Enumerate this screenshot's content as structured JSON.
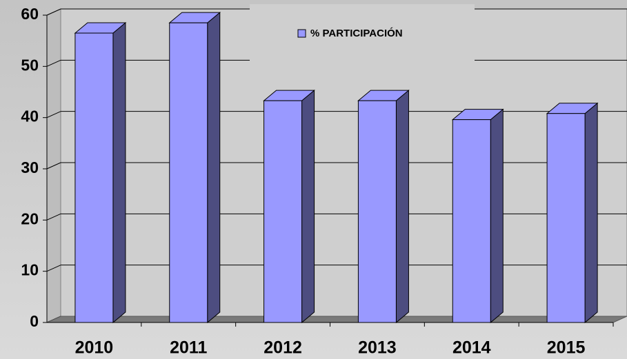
{
  "chart_data": {
    "type": "bar3d",
    "categories": [
      "2010",
      "2011",
      "2012",
      "2013",
      "2014",
      "2015"
    ],
    "series": [
      {
        "name": "% PARTICIPACIÓN",
        "color": "#9999ff",
        "values": [
          56.5,
          58.5,
          43.3,
          43.3,
          39.6,
          40.8
        ]
      }
    ],
    "ylim": [
      0,
      60
    ],
    "yticks": [
      0,
      10,
      20,
      30,
      40,
      50,
      60
    ],
    "grid": true
  }
}
